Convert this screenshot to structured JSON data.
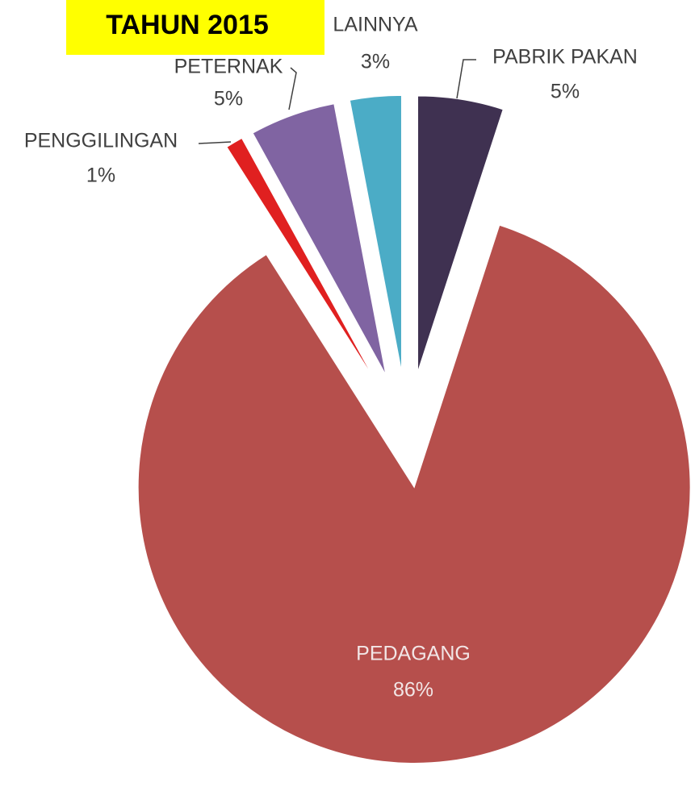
{
  "chart_data": {
    "type": "pie",
    "title": "TAHUN 2015",
    "categories": [
      "PABRIK PAKAN",
      "PEDAGANG",
      "PENGGILINGAN",
      "PETERNAK",
      "LAINNYA"
    ],
    "values": [
      5,
      86,
      1,
      5,
      3
    ],
    "value_labels": [
      "5%",
      "86%",
      "1%",
      "5%",
      "3%"
    ],
    "colors": [
      "#3f3151",
      "#b64f4c",
      "#e02020",
      "#8064a2",
      "#4bacc6"
    ]
  }
}
